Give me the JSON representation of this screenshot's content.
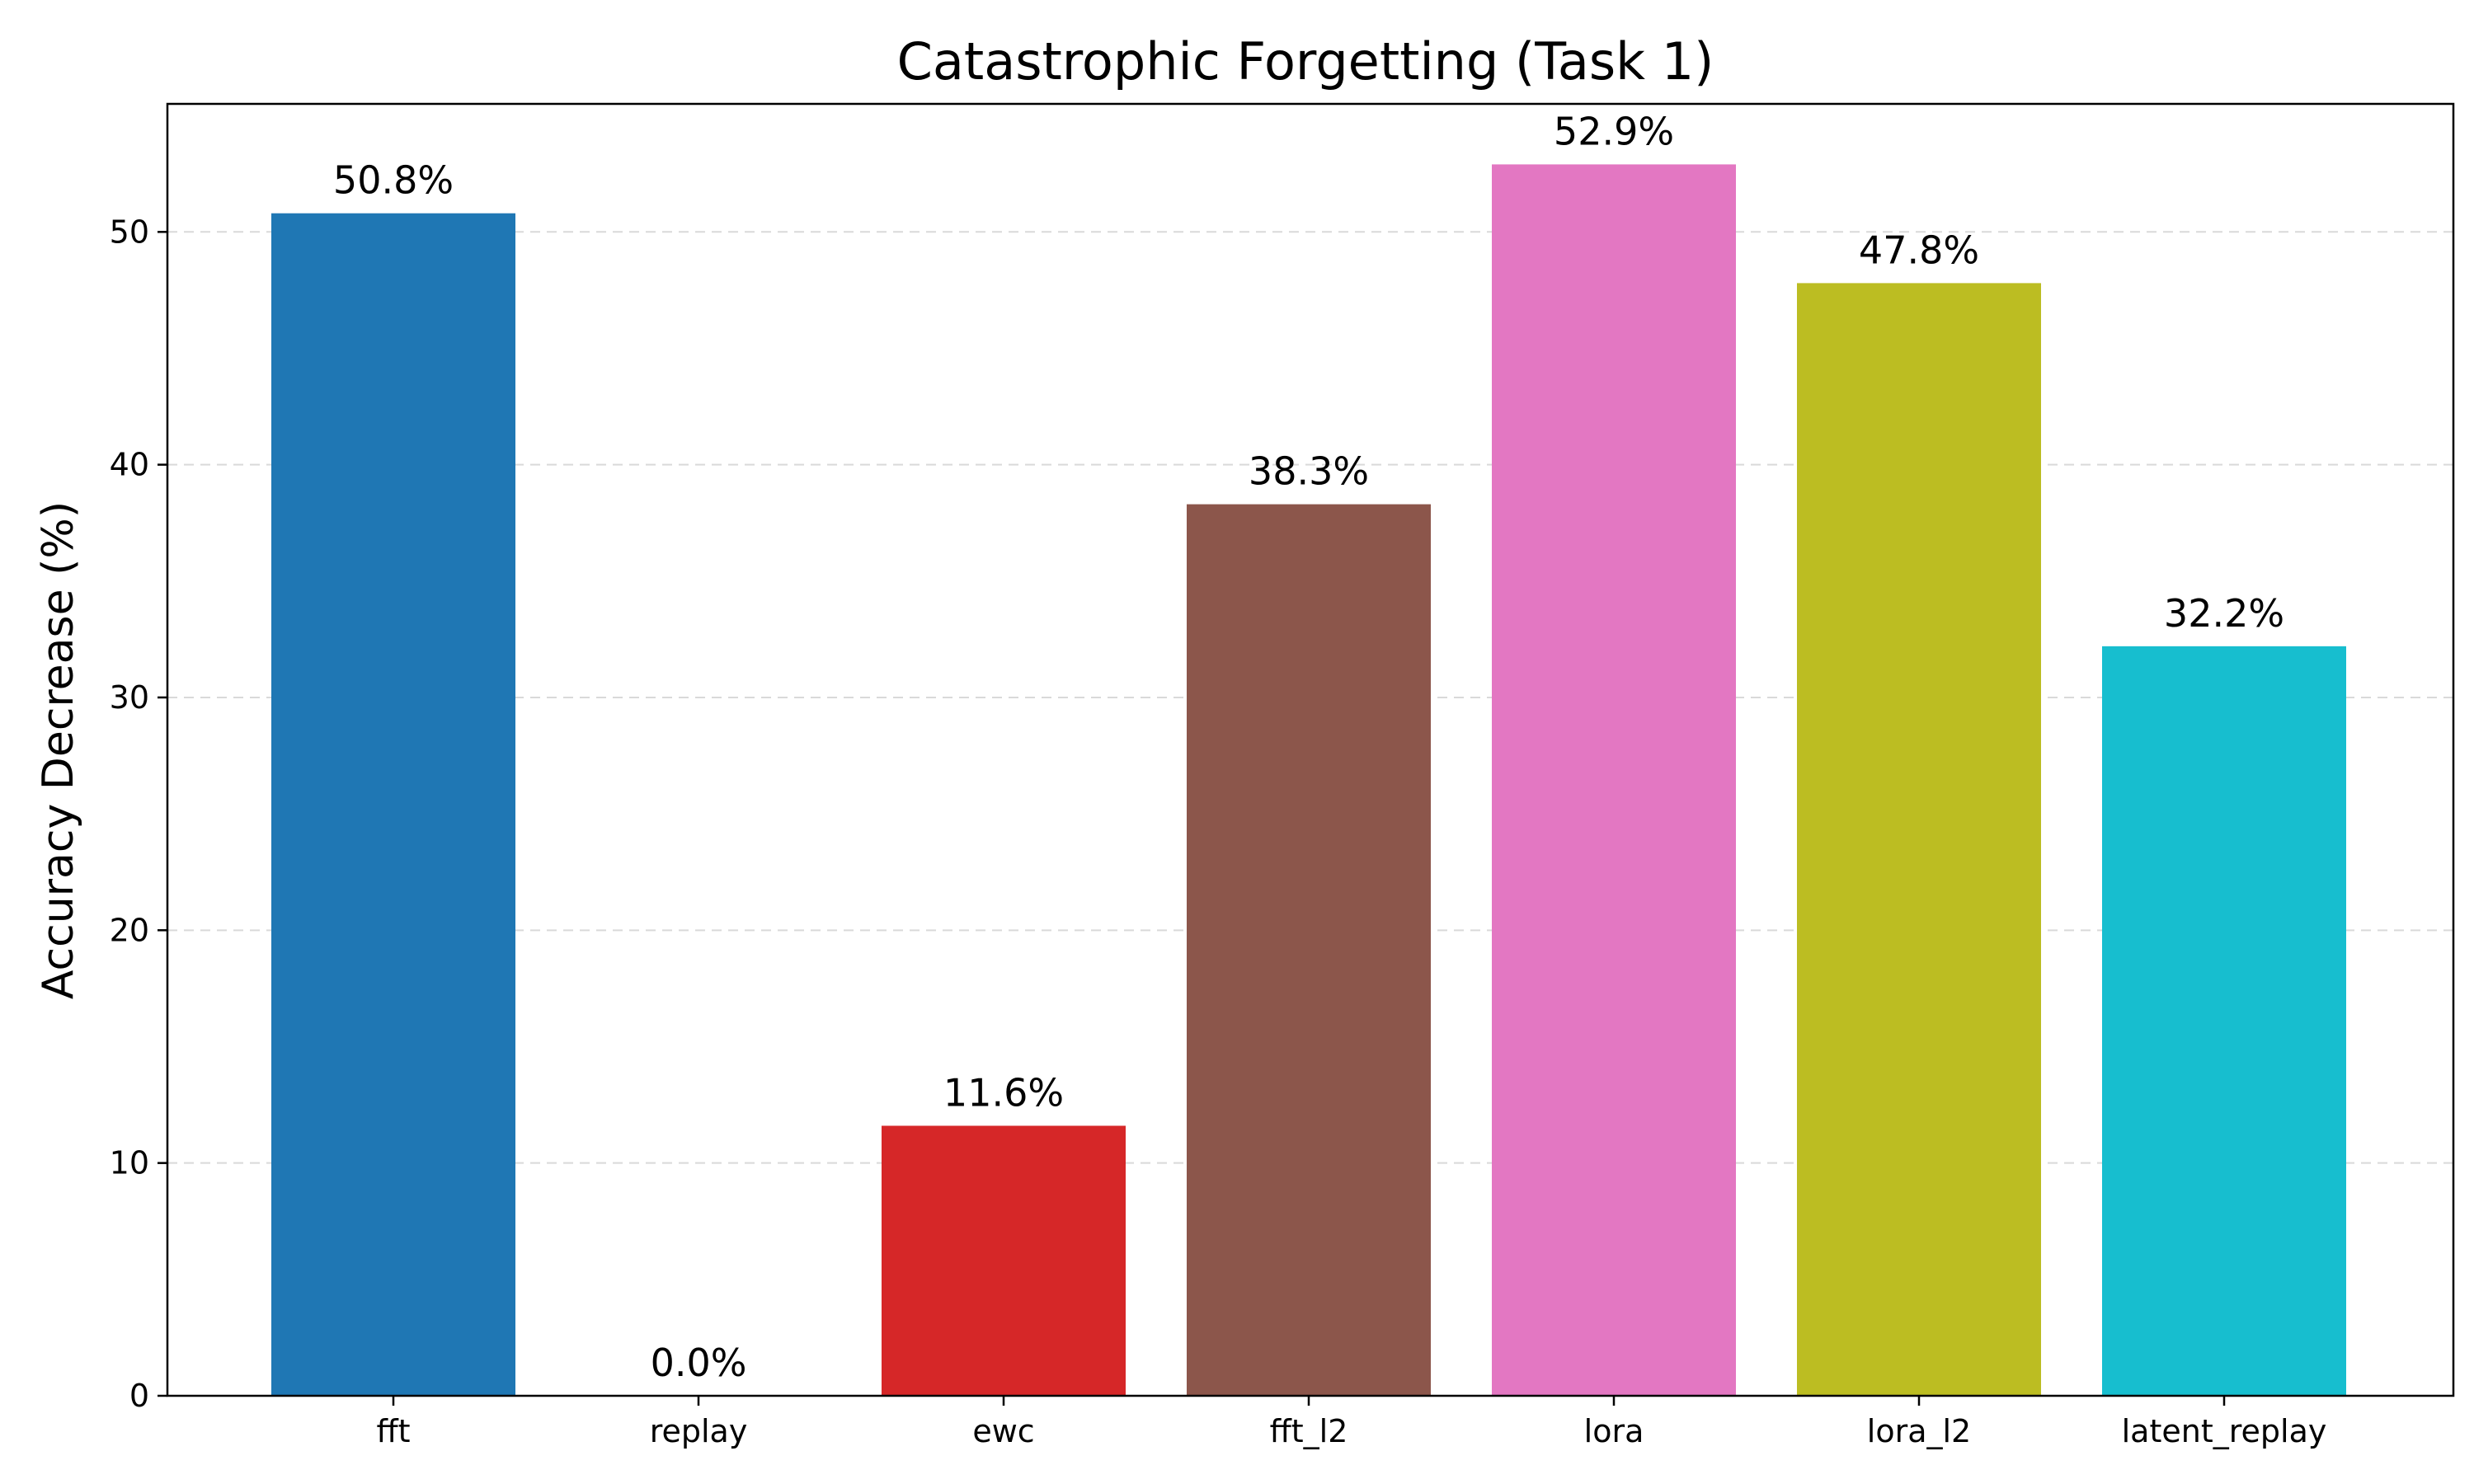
{
  "chart_data": {
    "type": "bar",
    "title": "Catastrophic Forgetting (Task 1)",
    "xlabel": "",
    "ylabel": "Accuracy Decrease (%)",
    "categories": [
      "fft",
      "replay",
      "ewc",
      "fft_l2",
      "lora",
      "lora_l2",
      "latent_replay"
    ],
    "values": [
      50.8,
      0.0,
      11.6,
      38.3,
      52.9,
      47.8,
      32.2
    ],
    "value_labels": [
      "50.8%",
      "0.0%",
      "11.6%",
      "38.3%",
      "52.9%",
      "47.8%",
      "32.2%"
    ],
    "colors": [
      "#1f77b4",
      "#ff7f0e",
      "#d62728",
      "#8c564b",
      "#e377c2",
      "#bcbd22",
      "#17becf"
    ],
    "ylim": [
      0,
      55.5
    ],
    "yticks": [
      0,
      10,
      20,
      30,
      40,
      50
    ],
    "grid": "y-dashed",
    "legend": "none"
  }
}
